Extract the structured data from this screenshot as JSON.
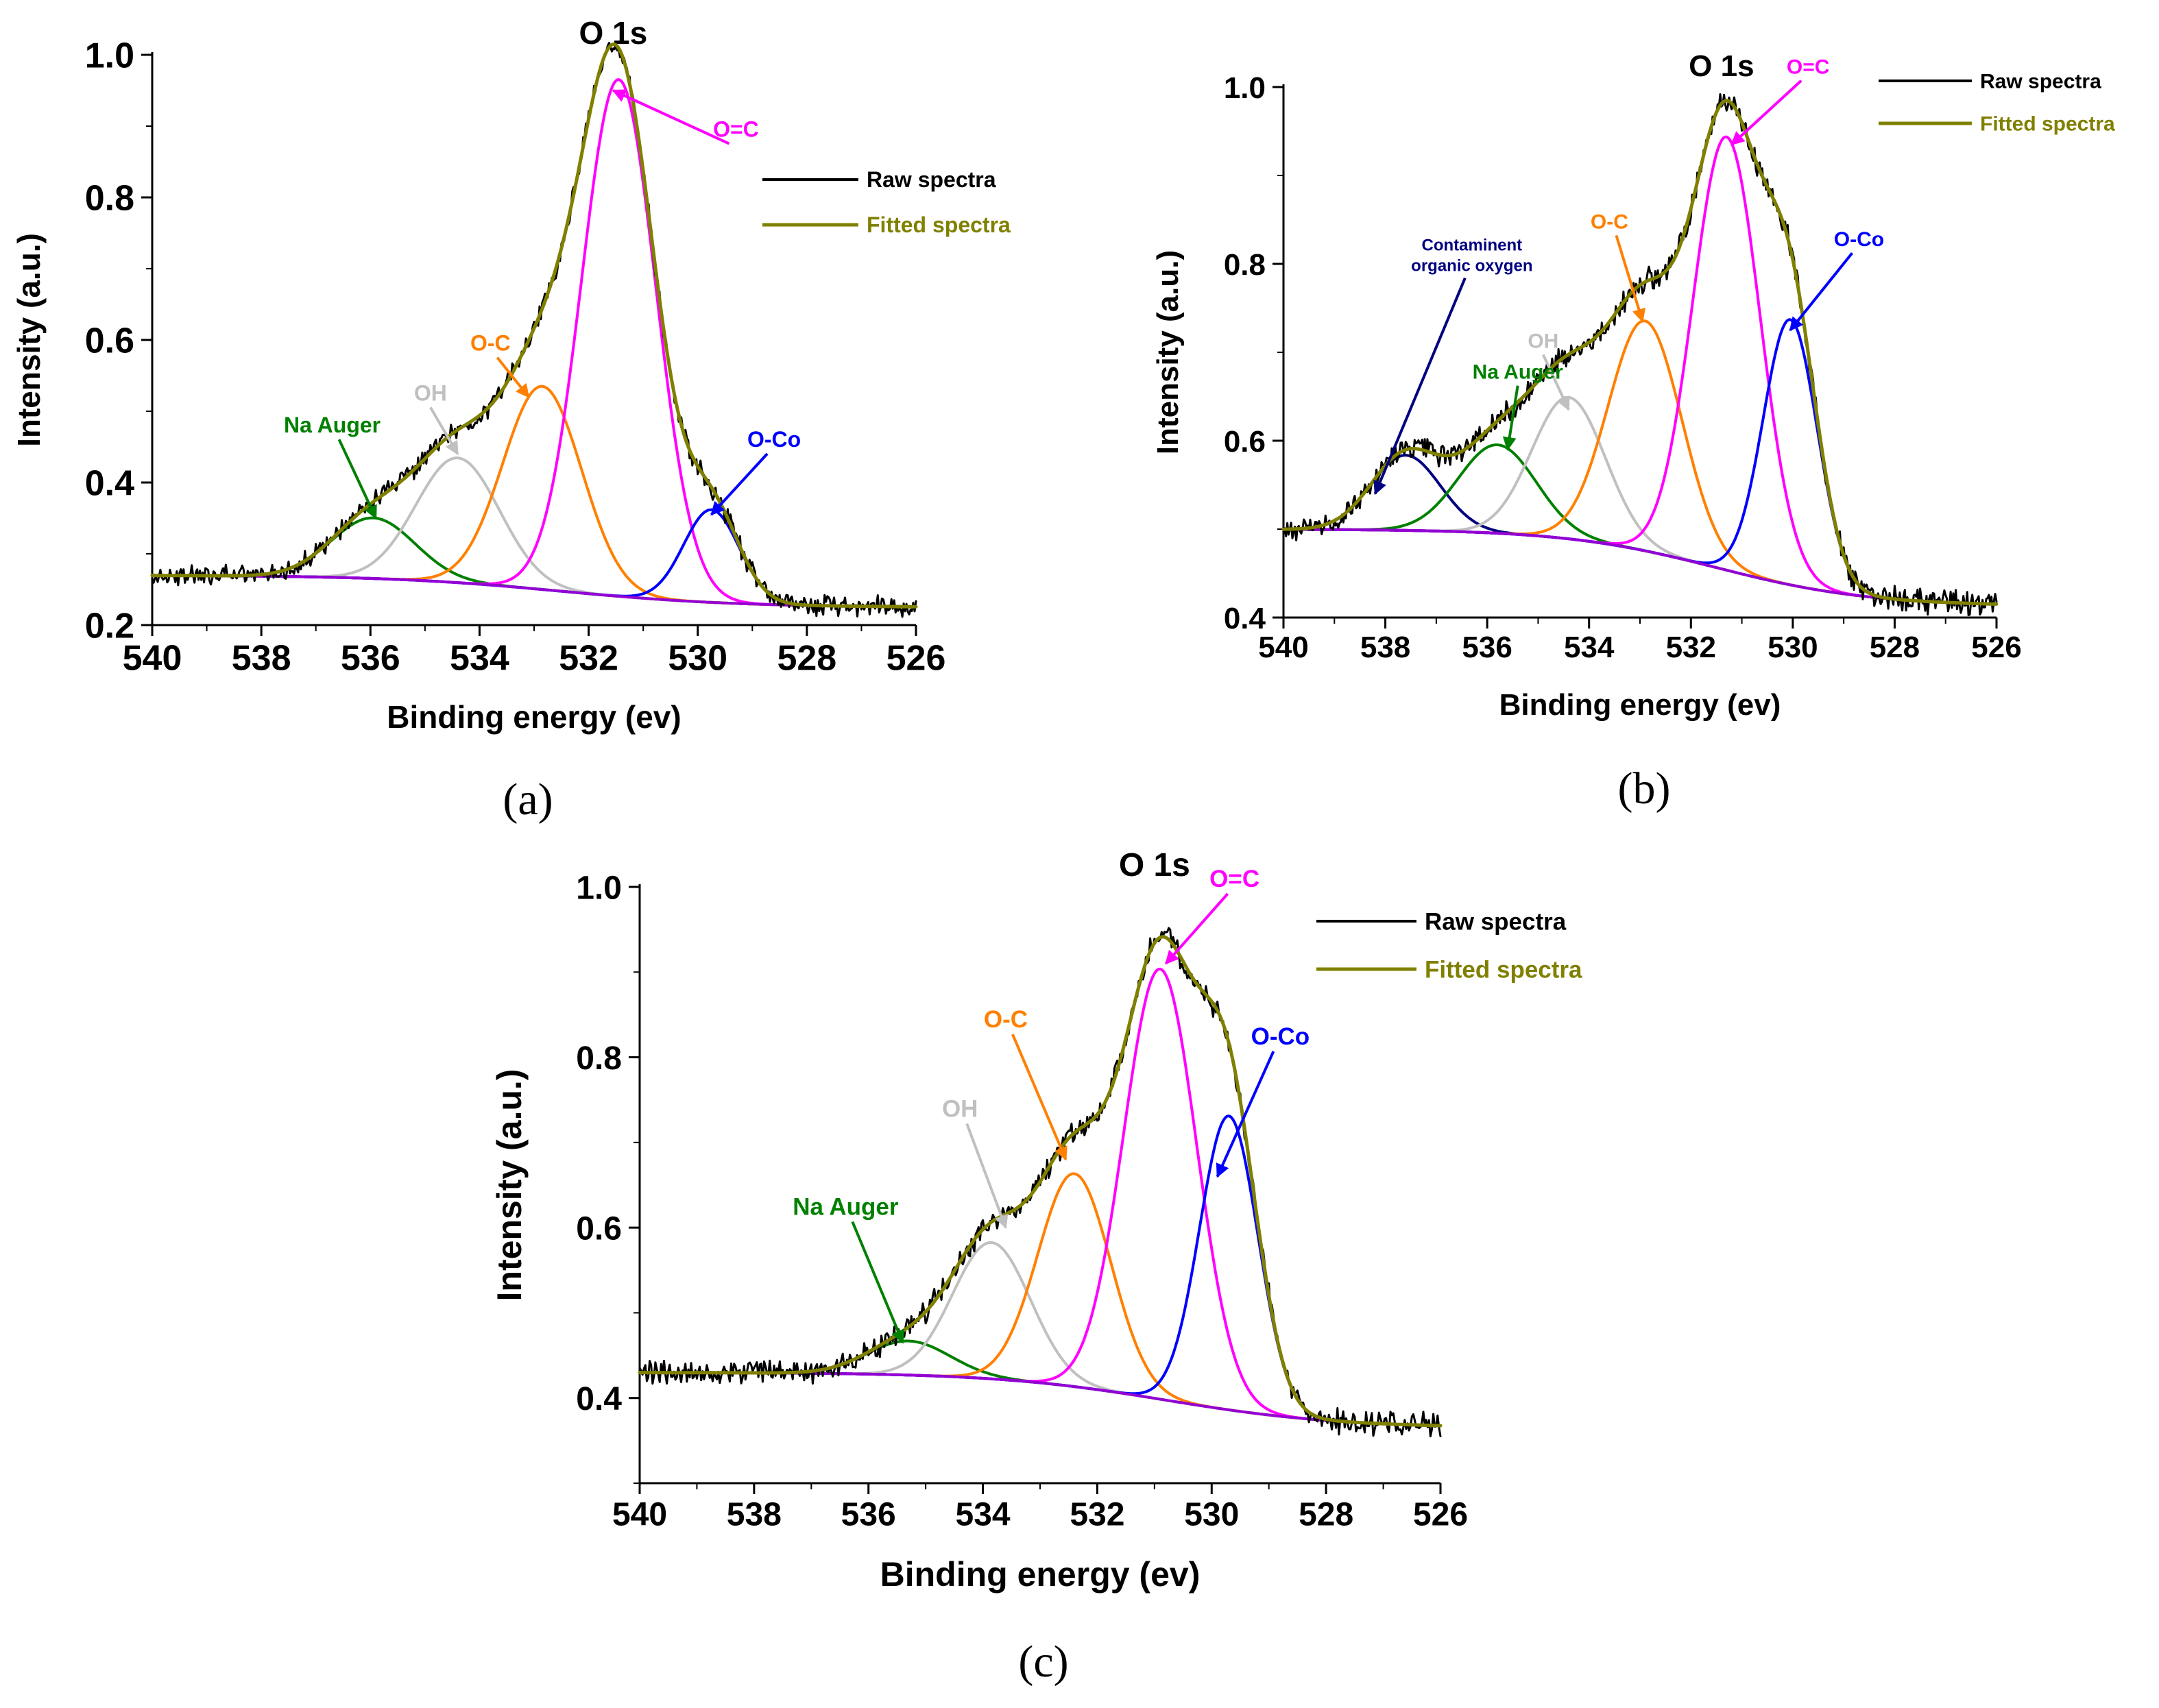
{
  "figure": {
    "panel_labels": [
      "(a)",
      "(b)",
      "(c)"
    ]
  },
  "colors": {
    "raw": "#000000",
    "fitted": "#808000",
    "background": "#9400d3",
    "o_c_double": "#ff00ff",
    "o_c_single": "#ff8000",
    "oh": "#c0c0c0",
    "na_auger": "#008000",
    "o_co": "#0000ff",
    "contaminant": "#000080"
  },
  "chart_data": [
    {
      "type": "line",
      "panel": "(a)",
      "title": "O 1s",
      "xlabel": "Binding energy (ev)",
      "ylabel": "Intensity (a.u.)",
      "xlim": [
        540,
        526
      ],
      "ylim": [
        0.2,
        1.0
      ],
      "xticks": [
        "540",
        "538",
        "536",
        "534",
        "532",
        "530",
        "528",
        "526"
      ],
      "yticks": [
        "0.2",
        "0.4",
        "0.6",
        "0.8",
        "1.0"
      ],
      "x_tick_values": [
        540,
        538,
        536,
        534,
        532,
        530,
        528,
        526
      ],
      "y_tick_values": [
        0.2,
        0.4,
        0.6,
        0.8,
        1.0
      ],
      "legend": [
        {
          "label": "Raw spectra",
          "color_key": "raw"
        },
        {
          "label": "Fitted spectra",
          "color_key": "fitted"
        }
      ],
      "background": {
        "left": 0.27,
        "right": 0.225,
        "center": 532.5,
        "width": 1.6
      },
      "peaks": [
        {
          "name": "Na Auger",
          "center": 535.95,
          "height": 0.085,
          "fwhm": 1.8,
          "color_key": "na_auger"
        },
        {
          "name": "OH",
          "center": 534.4,
          "height": 0.175,
          "fwhm": 1.8,
          "color_key": "oh"
        },
        {
          "name": "O-C",
          "center": 532.85,
          "height": 0.285,
          "fwhm": 1.7,
          "color_key": "o_c_single"
        },
        {
          "name": "O=C",
          "center": 531.45,
          "height": 0.725,
          "fwhm": 1.6,
          "color_key": "o_c_double"
        },
        {
          "name": "O-Co",
          "center": 529.75,
          "height": 0.13,
          "fwhm": 1.2,
          "color_key": "o_co"
        }
      ],
      "annotations": [
        {
          "text": "O=C",
          "color_key": "o_c_double",
          "text_x": 529.3,
          "text_y": 0.885,
          "arrow_to_x": 531.55,
          "arrow_to_y": 0.95
        },
        {
          "text": "O-C",
          "color_key": "o_c_single",
          "text_x": 533.8,
          "text_y": 0.585,
          "arrow_to_x": 533.1,
          "arrow_to_y": 0.52
        },
        {
          "text": "OH",
          "color_key": "oh",
          "text_x": 534.9,
          "text_y": 0.515,
          "arrow_to_x": 534.4,
          "arrow_to_y": 0.44
        },
        {
          "text": "Na Auger",
          "color_key": "na_auger",
          "text_x": 536.7,
          "text_y": 0.47,
          "arrow_to_x": 535.9,
          "arrow_to_y": 0.35
        },
        {
          "text": "O-Co",
          "color_key": "o_co",
          "text_x": 528.6,
          "text_y": 0.45,
          "arrow_to_x": 529.75,
          "arrow_to_y": 0.355
        }
      ]
    },
    {
      "type": "line",
      "panel": "(b)",
      "title": "O 1s",
      "xlabel": "Binding energy (ev)",
      "ylabel": "Intensity (a.u.)",
      "xlim": [
        540,
        526
      ],
      "ylim": [
        0.4,
        1.0
      ],
      "xticks": [
        "540",
        "538",
        "536",
        "534",
        "532",
        "530",
        "528",
        "526"
      ],
      "yticks": [
        "0.4",
        "0.6",
        "0.8",
        "1.0"
      ],
      "x_tick_values": [
        540,
        538,
        536,
        534,
        532,
        530,
        528,
        526
      ],
      "y_tick_values": [
        0.4,
        0.6,
        0.8,
        1.0
      ],
      "legend": [
        {
          "label": "Raw spectra",
          "color_key": "raw"
        },
        {
          "label": "Fitted spectra",
          "color_key": "fitted"
        }
      ],
      "background": {
        "left": 0.5,
        "right": 0.413,
        "center": 531.5,
        "width": 1.5
      },
      "peaks": [
        {
          "name": "Contaminent organic oxygen",
          "center": 537.6,
          "height": 0.085,
          "fwhm": 1.6,
          "color_key": "contaminant"
        },
        {
          "name": "Na Auger",
          "center": 535.8,
          "height": 0.1,
          "fwhm": 1.8,
          "color_key": "na_auger"
        },
        {
          "name": "OH",
          "center": 534.4,
          "height": 0.16,
          "fwhm": 1.7,
          "color_key": "oh"
        },
        {
          "name": "O-C",
          "center": 532.9,
          "height": 0.26,
          "fwhm": 1.7,
          "color_key": "o_c_single"
        },
        {
          "name": "O=C",
          "center": 531.3,
          "height": 0.49,
          "fwhm": 1.55,
          "color_key": "o_c_double"
        },
        {
          "name": "O-Co",
          "center": 530.05,
          "height": 0.3,
          "fwhm": 1.25,
          "color_key": "o_co"
        }
      ],
      "annotations": [
        {
          "text": "O=C",
          "color_key": "o_c_double",
          "text_x": 529.7,
          "text_y": 1.015,
          "arrow_to_x": 531.2,
          "arrow_to_y": 0.935
        },
        {
          "text": "O-C",
          "color_key": "o_c_single",
          "text_x": 533.6,
          "text_y": 0.84,
          "arrow_to_x": 532.95,
          "arrow_to_y": 0.735
        },
        {
          "text": "OH",
          "color_key": "oh",
          "text_x": 534.9,
          "text_y": 0.705,
          "arrow_to_x": 534.4,
          "arrow_to_y": 0.635
        },
        {
          "text": "Na Auger",
          "color_key": "na_auger",
          "text_x": 535.4,
          "text_y": 0.67,
          "arrow_to_x": 535.6,
          "arrow_to_y": 0.59
        },
        {
          "text": "O-Co",
          "color_key": "o_co",
          "text_x": 528.7,
          "text_y": 0.82,
          "arrow_to_x": 530.05,
          "arrow_to_y": 0.725
        },
        {
          "text": "Contaminent",
          "text2": "organic oxygen",
          "color_key": "contaminant",
          "text_x": 536.3,
          "text_y": 0.815,
          "arrow_to_x": 538.2,
          "arrow_to_y": 0.54
        }
      ]
    },
    {
      "type": "line",
      "panel": "(c)",
      "title": "O 1s",
      "xlabel": "Binding energy (ev)",
      "ylabel": "Intensity (a.u.)",
      "xlim": [
        540,
        526
      ],
      "ylim": [
        0.3,
        1.0
      ],
      "xticks": [
        "540",
        "538",
        "536",
        "534",
        "532",
        "530",
        "528",
        "526"
      ],
      "yticks": [
        "0.4",
        "0.6",
        "0.8",
        "1.0"
      ],
      "x_tick_values": [
        540,
        538,
        536,
        534,
        532,
        530,
        528,
        526
      ],
      "y_tick_values": [
        0.4,
        0.6,
        0.8,
        1.0
      ],
      "legend": [
        {
          "label": "Raw spectra",
          "color_key": "raw"
        },
        {
          "label": "Fitted spectra",
          "color_key": "fitted"
        }
      ],
      "background": {
        "left": 0.43,
        "right": 0.365,
        "center": 530.8,
        "width": 1.5
      },
      "peaks": [
        {
          "name": "Na Auger",
          "center": 535.3,
          "height": 0.04,
          "fwhm": 1.7,
          "color_key": "na_auger"
        },
        {
          "name": "OH",
          "center": 533.85,
          "height": 0.16,
          "fwhm": 1.6,
          "color_key": "oh"
        },
        {
          "name": "O-C",
          "center": 532.4,
          "height": 0.25,
          "fwhm": 1.5,
          "color_key": "o_c_single"
        },
        {
          "name": "O=C",
          "center": 530.9,
          "height": 0.505,
          "fwhm": 1.5,
          "color_key": "o_c_double"
        },
        {
          "name": "O-Co",
          "center": 529.7,
          "height": 0.345,
          "fwhm": 1.2,
          "color_key": "o_co"
        }
      ],
      "annotations": [
        {
          "text": "O=C",
          "color_key": "o_c_double",
          "text_x": 529.6,
          "text_y": 1.0,
          "arrow_to_x": 530.8,
          "arrow_to_y": 0.91
        },
        {
          "text": "O-C",
          "color_key": "o_c_single",
          "text_x": 533.6,
          "text_y": 0.835,
          "arrow_to_x": 532.55,
          "arrow_to_y": 0.68
        },
        {
          "text": "OH",
          "color_key": "oh",
          "text_x": 534.4,
          "text_y": 0.73,
          "arrow_to_x": 533.6,
          "arrow_to_y": 0.6
        },
        {
          "text": "Na Auger",
          "color_key": "na_auger",
          "text_x": 536.4,
          "text_y": 0.615,
          "arrow_to_x": 535.4,
          "arrow_to_y": 0.465
        },
        {
          "text": "O-Co",
          "color_key": "o_co",
          "text_x": 528.8,
          "text_y": 0.815,
          "arrow_to_x": 529.9,
          "arrow_to_y": 0.66
        }
      ]
    }
  ]
}
